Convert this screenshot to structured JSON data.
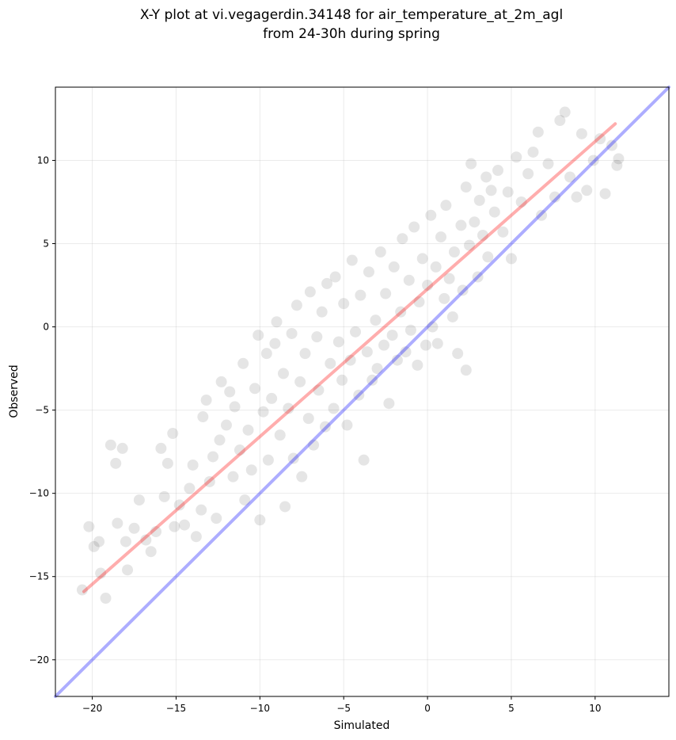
{
  "chart_data": {
    "type": "scatter",
    "title": "X-Y plot at vi.vegagerdin.34148 for air_temperature_at_2m_agl",
    "subtitle": "from 24-30h during spring",
    "xlabel": "Simulated",
    "ylabel": "Observed",
    "xlim": [
      -22.2,
      14.4
    ],
    "ylim": [
      -22.2,
      14.4
    ],
    "xticks": [
      -20,
      -15,
      -10,
      -5,
      0,
      5,
      10
    ],
    "yticks": [
      -20,
      -15,
      -10,
      -5,
      0,
      5,
      10
    ],
    "xtick_labels": [
      "−20",
      "−15",
      "−10",
      "−5",
      "0",
      "5",
      "10"
    ],
    "ytick_labels": [
      "−20",
      "−15",
      "−10",
      "−5",
      "0",
      "5",
      "10"
    ],
    "grid": true,
    "point_color": "#000000",
    "point_opacity": 0.08,
    "points_sample": [
      [
        -20.6,
        -15.8
      ],
      [
        -20.2,
        -12.0
      ],
      [
        -19.9,
        -13.2
      ],
      [
        -19.6,
        -12.9
      ],
      [
        -19.5,
        -14.8
      ],
      [
        -19.2,
        -16.3
      ],
      [
        -18.9,
        -7.1
      ],
      [
        -18.6,
        -8.2
      ],
      [
        -18.5,
        -11.8
      ],
      [
        -18.2,
        -7.3
      ],
      [
        -18.0,
        -12.9
      ],
      [
        -17.9,
        -14.6
      ],
      [
        -17.5,
        -12.1
      ],
      [
        -17.2,
        -10.4
      ],
      [
        -16.8,
        -12.8
      ],
      [
        -16.5,
        -13.5
      ],
      [
        -16.2,
        -12.3
      ],
      [
        -15.9,
        -7.3
      ],
      [
        -15.7,
        -10.2
      ],
      [
        -15.5,
        -8.2
      ],
      [
        -15.2,
        -6.4
      ],
      [
        -15.1,
        -12.0
      ],
      [
        -14.8,
        -10.7
      ],
      [
        -14.5,
        -11.9
      ],
      [
        -14.2,
        -9.7
      ],
      [
        -14.0,
        -8.3
      ],
      [
        -13.8,
        -12.6
      ],
      [
        -13.5,
        -11.0
      ],
      [
        -13.4,
        -5.4
      ],
      [
        -13.2,
        -4.4
      ],
      [
        -13.0,
        -9.3
      ],
      [
        -12.8,
        -7.8
      ],
      [
        -12.6,
        -11.5
      ],
      [
        -12.4,
        -6.8
      ],
      [
        -12.3,
        -3.3
      ],
      [
        -12.0,
        -5.9
      ],
      [
        -11.8,
        -3.9
      ],
      [
        -11.6,
        -9.0
      ],
      [
        -11.5,
        -4.8
      ],
      [
        -11.2,
        -7.4
      ],
      [
        -11.0,
        -2.2
      ],
      [
        -10.9,
        -10.4
      ],
      [
        -10.7,
        -6.2
      ],
      [
        -10.5,
        -8.6
      ],
      [
        -10.3,
        -3.7
      ],
      [
        -10.1,
        -0.5
      ],
      [
        -10.0,
        -11.6
      ],
      [
        -9.8,
        -5.1
      ],
      [
        -9.6,
        -1.6
      ],
      [
        -9.5,
        -8.0
      ],
      [
        -9.3,
        -4.3
      ],
      [
        -9.1,
        -1.0
      ],
      [
        -9.0,
        0.3
      ],
      [
        -8.8,
        -6.5
      ],
      [
        -8.6,
        -2.8
      ],
      [
        -8.5,
        -10.8
      ],
      [
        -8.3,
        -4.9
      ],
      [
        -8.1,
        -0.4
      ],
      [
        -8.0,
        -7.9
      ],
      [
        -7.8,
        1.3
      ],
      [
        -7.6,
        -3.3
      ],
      [
        -7.5,
        -9.0
      ],
      [
        -7.3,
        -1.6
      ],
      [
        -7.1,
        -5.5
      ],
      [
        -7.0,
        2.1
      ],
      [
        -6.8,
        -7.1
      ],
      [
        -6.6,
        -0.6
      ],
      [
        -6.5,
        -3.8
      ],
      [
        -6.3,
        0.9
      ],
      [
        -6.1,
        -6.0
      ],
      [
        -6.0,
        2.6
      ],
      [
        -5.8,
        -2.2
      ],
      [
        -5.6,
        -4.9
      ],
      [
        -5.5,
        3.0
      ],
      [
        -5.3,
        -0.9
      ],
      [
        -5.1,
        -3.2
      ],
      [
        -5.0,
        1.4
      ],
      [
        -4.8,
        -5.9
      ],
      [
        -4.6,
        -2.0
      ],
      [
        -4.5,
        4.0
      ],
      [
        -4.3,
        -0.3
      ],
      [
        -4.1,
        -4.1
      ],
      [
        -4.0,
        1.9
      ],
      [
        -3.8,
        -8.0
      ],
      [
        -3.6,
        -1.5
      ],
      [
        -3.5,
        3.3
      ],
      [
        -3.3,
        -3.2
      ],
      [
        -3.1,
        0.4
      ],
      [
        -3.0,
        -2.5
      ],
      [
        -2.8,
        4.5
      ],
      [
        -2.6,
        -1.1
      ],
      [
        -2.5,
        2.0
      ],
      [
        -2.3,
        -4.6
      ],
      [
        -2.1,
        -0.5
      ],
      [
        -2.0,
        3.6
      ],
      [
        -1.8,
        -2.0
      ],
      [
        -1.6,
        0.9
      ],
      [
        -1.5,
        5.3
      ],
      [
        -1.3,
        -1.5
      ],
      [
        -1.1,
        2.8
      ],
      [
        -1.0,
        -0.2
      ],
      [
        -0.8,
        6.0
      ],
      [
        -0.6,
        -2.3
      ],
      [
        -0.5,
        1.5
      ],
      [
        -0.3,
        4.1
      ],
      [
        -0.1,
        -1.1
      ],
      [
        0.0,
        2.5
      ],
      [
        0.2,
        6.7
      ],
      [
        0.3,
        0.0
      ],
      [
        0.5,
        3.6
      ],
      [
        0.6,
        -1.0
      ],
      [
        0.8,
        5.4
      ],
      [
        1.0,
        1.7
      ],
      [
        1.1,
        7.3
      ],
      [
        1.3,
        2.9
      ],
      [
        1.5,
        0.6
      ],
      [
        1.6,
        4.5
      ],
      [
        1.8,
        -1.6
      ],
      [
        2.0,
        6.1
      ],
      [
        2.1,
        2.2
      ],
      [
        2.3,
        8.4
      ],
      [
        2.3,
        -2.6
      ],
      [
        2.5,
        4.9
      ],
      [
        2.6,
        9.8
      ],
      [
        2.8,
        6.3
      ],
      [
        3.0,
        3.0
      ],
      [
        3.1,
        7.6
      ],
      [
        3.3,
        5.5
      ],
      [
        3.5,
        9.0
      ],
      [
        3.6,
        4.2
      ],
      [
        3.8,
        8.2
      ],
      [
        4.0,
        6.9
      ],
      [
        4.2,
        9.4
      ],
      [
        4.5,
        5.7
      ],
      [
        4.8,
        8.1
      ],
      [
        5.0,
        4.1
      ],
      [
        5.3,
        10.2
      ],
      [
        5.6,
        7.5
      ],
      [
        6.0,
        9.2
      ],
      [
        6.3,
        10.5
      ],
      [
        6.6,
        11.7
      ],
      [
        6.8,
        6.7
      ],
      [
        7.2,
        9.8
      ],
      [
        7.6,
        7.8
      ],
      [
        7.9,
        12.4
      ],
      [
        8.2,
        12.9
      ],
      [
        8.5,
        9.0
      ],
      [
        8.9,
        7.8
      ],
      [
        9.2,
        11.6
      ],
      [
        9.5,
        8.2
      ],
      [
        9.9,
        10.0
      ],
      [
        10.3,
        11.3
      ],
      [
        10.6,
        8.0
      ],
      [
        11.0,
        10.9
      ],
      [
        11.3,
        9.7
      ],
      [
        11.4,
        10.1
      ]
    ],
    "regression_line": {
      "color": "#ff0000",
      "x": [
        -20.5,
        11.2
      ],
      "y": [
        -15.9,
        12.2
      ]
    },
    "identity_line": {
      "color": "#0000ff",
      "x": [
        -22.2,
        14.4
      ],
      "y": [
        -22.2,
        14.4
      ]
    }
  }
}
